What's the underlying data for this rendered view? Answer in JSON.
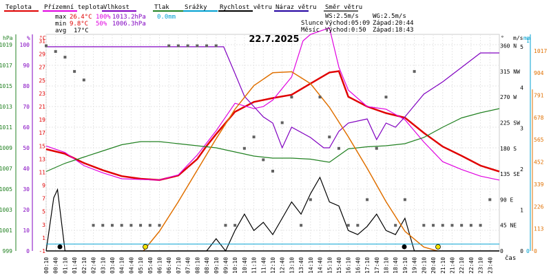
{
  "legend": [
    {
      "label": "Teplota",
      "color": "#e00000"
    },
    {
      "label": "Přízemní teplota",
      "color": "#e000e0"
    },
    {
      "label": "Vlhkost",
      "color": "#8000c0"
    },
    {
      "label": "Tlak",
      "color": "#208020"
    },
    {
      "label": "Srážky",
      "color": "#00a0d0"
    },
    {
      "label": "Rychlost větru",
      "color": "#000000"
    },
    {
      "label": "Náraz větru",
      "color": "#2000a0"
    },
    {
      "label": "Směr větru",
      "color": "#606060"
    }
  ],
  "stats": {
    "labels": [
      "max",
      "min",
      "avg"
    ],
    "temp": [
      "26.4°C",
      "9.8°C",
      "17°C"
    ],
    "hum": [
      "100%",
      "50%",
      ""
    ],
    "press": [
      "1013.2hPa",
      "1006.3hPa",
      ""
    ],
    "rain": [
      "0.0mm",
      "",
      ""
    ]
  },
  "info": {
    "ws": "WS:2.5m/s",
    "wg": "WG:2.5m/s",
    "sun_label": "Slunce",
    "sun_rise": "Východ:05:09",
    "sun_set": "Západ:20:44",
    "moon_label": "Měsíc",
    "moon_rise": "Východ:0:50",
    "moon_set": "Západ:18:43"
  },
  "chart_data": {
    "type": "line",
    "title": "22.7.2025",
    "xlabel": "čas",
    "x_ticks": [
      "00:10",
      "00:40",
      "01:10",
      "01:40",
      "02:10",
      "02:40",
      "03:10",
      "03:40",
      "04:10",
      "04:40",
      "05:10",
      "05:40",
      "06:10",
      "06:40",
      "07:10",
      "07:40",
      "08:10",
      "08:40",
      "09:10",
      "09:40",
      "10:10",
      "10:40",
      "11:10",
      "11:40",
      "12:10",
      "12:40",
      "13:10",
      "13:40",
      "14:10",
      "14:40",
      "15:10",
      "15:40",
      "16:10",
      "16:40",
      "17:10",
      "17:40",
      "18:10",
      "18:40",
      "19:10",
      "19:40",
      "20:10",
      "20:40",
      "21:10",
      "21:40",
      "22:10",
      "22:40",
      "23:10",
      "23:40"
    ],
    "axes": {
      "pressure_hPa": {
        "label": "hPa",
        "color": "#208020",
        "ticks": [
          "999",
          "1001",
          "1003",
          "1005",
          "1007",
          "1009",
          "1011",
          "1013",
          "1015",
          "1017",
          "1019"
        ],
        "range": [
          999,
          1020
        ]
      },
      "humidity_pct": {
        "label": "%",
        "color": "#8000c0",
        "ticks": [
          "0",
          "10",
          "20",
          "30",
          "40",
          "50",
          "60",
          "70",
          "80",
          "90",
          "100"
        ],
        "range": [
          0,
          105
        ]
      },
      "temperature_C": {
        "label": "°C",
        "color": "#e00000",
        "ticks": [
          "-1",
          "1",
          "3",
          "5",
          "7",
          "9",
          "11",
          "13",
          "15",
          "17",
          "19",
          "21",
          "23",
          "25",
          "27",
          "29",
          "31"
        ],
        "range": [
          -1,
          32
        ]
      },
      "wind_direction_deg": {
        "label": "°",
        "ticks": [
          "0",
          "45 NE",
          "90 E",
          "135 SE",
          "180 S",
          "225 SW",
          "270 W",
          "315 NW",
          "360 N"
        ],
        "range": [
          0,
          380
        ]
      },
      "wind_speed_ms": {
        "label": "m/s",
        "ticks": [
          "0",
          "1",
          "2",
          "3",
          "4",
          "5"
        ],
        "range": [
          0,
          5.3
        ]
      },
      "rain_mm": {
        "label": "mm",
        "color": "#00a0d0",
        "ticks": [
          "0",
          "1"
        ],
        "range": [
          0,
          1.03
        ]
      },
      "solar_Wm2": {
        "color": "#e07000",
        "ticks": [
          "0",
          "113",
          "226",
          "339",
          "452",
          "565",
          "678",
          "791",
          "904",
          "1017"
        ],
        "range": [
          0,
          1100
        ]
      }
    },
    "grid": true,
    "series": [
      {
        "name": "Teplota",
        "unit": "°C",
        "color": "#e00000",
        "x": [
          0,
          1,
          2,
          3,
          4,
          5,
          6,
          7,
          8,
          8.5,
          9,
          10,
          11,
          12,
          13,
          14,
          15,
          15.5,
          16,
          17,
          18,
          19,
          20,
          21,
          22,
          23,
          24
        ],
        "values": [
          14.5,
          13.8,
          12.4,
          11.3,
          10.4,
          10.0,
          9.8,
          10.5,
          13.0,
          15.0,
          16.8,
          20.2,
          21.7,
          22.3,
          22.8,
          24.5,
          26.2,
          26.4,
          22.5,
          21.0,
          20.0,
          19.3,
          17.0,
          14.9,
          13.5,
          12.0,
          11.1
        ]
      },
      {
        "name": "Přízemní teplota",
        "unit": "°C",
        "color": "#e000e0",
        "x": [
          0,
          1,
          2,
          3,
          4,
          5,
          6,
          7,
          8,
          9,
          10,
          11,
          11.5,
          12,
          13,
          13.6,
          14,
          15,
          15.5,
          16,
          17,
          18,
          19,
          20,
          21,
          22,
          23,
          24
        ],
        "values": [
          15.0,
          14.0,
          12.0,
          10.9,
          10.0,
          9.9,
          9.8,
          10.6,
          13.6,
          17.3,
          21.5,
          20.7,
          21.0,
          22.0,
          25.5,
          31.0,
          32.0,
          33.0,
          27.0,
          23.5,
          21.0,
          20.6,
          19.0,
          15.6,
          12.6,
          11.4,
          10.4,
          9.8
        ]
      },
      {
        "name": "Vlhkost",
        "unit": "%",
        "color": "#8000c0",
        "x": [
          0,
          1,
          2,
          3,
          4,
          5,
          6,
          7,
          8,
          9,
          9.4,
          10,
          10.5,
          11,
          11.5,
          12,
          12.5,
          13,
          14,
          14.7,
          15,
          15.5,
          16,
          17,
          17.5,
          18,
          18.5,
          19,
          20,
          21,
          22,
          23,
          24
        ],
        "values": [
          99,
          99,
          99,
          99,
          99,
          99,
          99,
          99,
          99,
          99,
          99,
          86,
          75,
          70,
          65,
          62,
          50,
          60,
          55,
          50,
          50,
          58,
          62,
          64,
          54,
          62,
          60,
          65,
          76,
          82,
          89,
          96,
          96
        ]
      },
      {
        "name": "Tlak",
        "unit": "hPa",
        "color": "#208020",
        "x": [
          0,
          1,
          2,
          3,
          4,
          5,
          6,
          7,
          8,
          9,
          10,
          11,
          12,
          13,
          14,
          15,
          16,
          17,
          18,
          19,
          20,
          21,
          22,
          23,
          24
        ],
        "values": [
          1006.7,
          1007.5,
          1008.1,
          1008.7,
          1009.3,
          1009.6,
          1009.6,
          1009.4,
          1009.2,
          1009.0,
          1008.6,
          1008.2,
          1008.0,
          1008.0,
          1007.9,
          1007.6,
          1008.9,
          1009.1,
          1009.2,
          1009.4,
          1010.0,
          1011.0,
          1011.9,
          1012.4,
          1012.8
        ]
      },
      {
        "name": "Rychlost větru",
        "unit": "m/s",
        "color": "#000000",
        "x": [
          0,
          0.4,
          0.6,
          1,
          1.5,
          2,
          8.5,
          9,
          9.5,
          10,
          10.5,
          11,
          11.5,
          12,
          12.5,
          13,
          13.5,
          14,
          14.5,
          15,
          15.5,
          16,
          16.5,
          17,
          17.5,
          18,
          18.5,
          19,
          19.5,
          20,
          24
        ],
        "values": [
          0,
          1.3,
          1.5,
          0,
          0,
          0,
          0,
          0.3,
          0,
          0.5,
          0.9,
          0.5,
          0.7,
          0.4,
          0.8,
          1.2,
          0.9,
          1.4,
          1.8,
          1.2,
          1.1,
          0.5,
          0.4,
          0.6,
          0.9,
          0.5,
          0.4,
          0.8,
          0,
          0,
          0
        ]
      },
      {
        "name": "Slunce",
        "unit": "W/m²",
        "color": "#e07000",
        "x": [
          5.15,
          6,
          7,
          8,
          9,
          10,
          11,
          12,
          13,
          14,
          15,
          16,
          17,
          18,
          19,
          20,
          20.73
        ],
        "values": [
          0,
          100,
          250,
          410,
          570,
          720,
          840,
          905,
          910,
          850,
          730,
          580,
          420,
          250,
          100,
          20,
          0
        ]
      },
      {
        "name": "Směr větru",
        "unit": "°",
        "color": "#606060",
        "x": [
          0,
          0.5,
          1,
          1.5,
          2,
          2.5,
          3,
          3.5,
          4,
          4.5,
          5,
          5.5,
          6,
          6.5,
          7,
          7.5,
          8,
          8.5,
          9,
          9.5,
          10,
          10.5,
          11,
          11.5,
          12,
          12.5,
          13,
          13.5,
          14,
          14.5,
          15,
          15.5,
          16,
          16.5,
          17,
          17.5,
          18,
          18.5,
          19,
          19.5,
          20,
          20.5,
          21,
          21.5,
          22,
          22.5,
          23,
          23.5
        ],
        "values": [
          360,
          350,
          340,
          315,
          300,
          45,
          45,
          45,
          45,
          45,
          45,
          45,
          45,
          360,
          360,
          360,
          360,
          360,
          360,
          45,
          45,
          180,
          200,
          160,
          140,
          225,
          270,
          45,
          90,
          270,
          200,
          180,
          45,
          45,
          90,
          180,
          270,
          45,
          90,
          315,
          45,
          45,
          45,
          45,
          45,
          45,
          45,
          90
        ]
      }
    ]
  }
}
